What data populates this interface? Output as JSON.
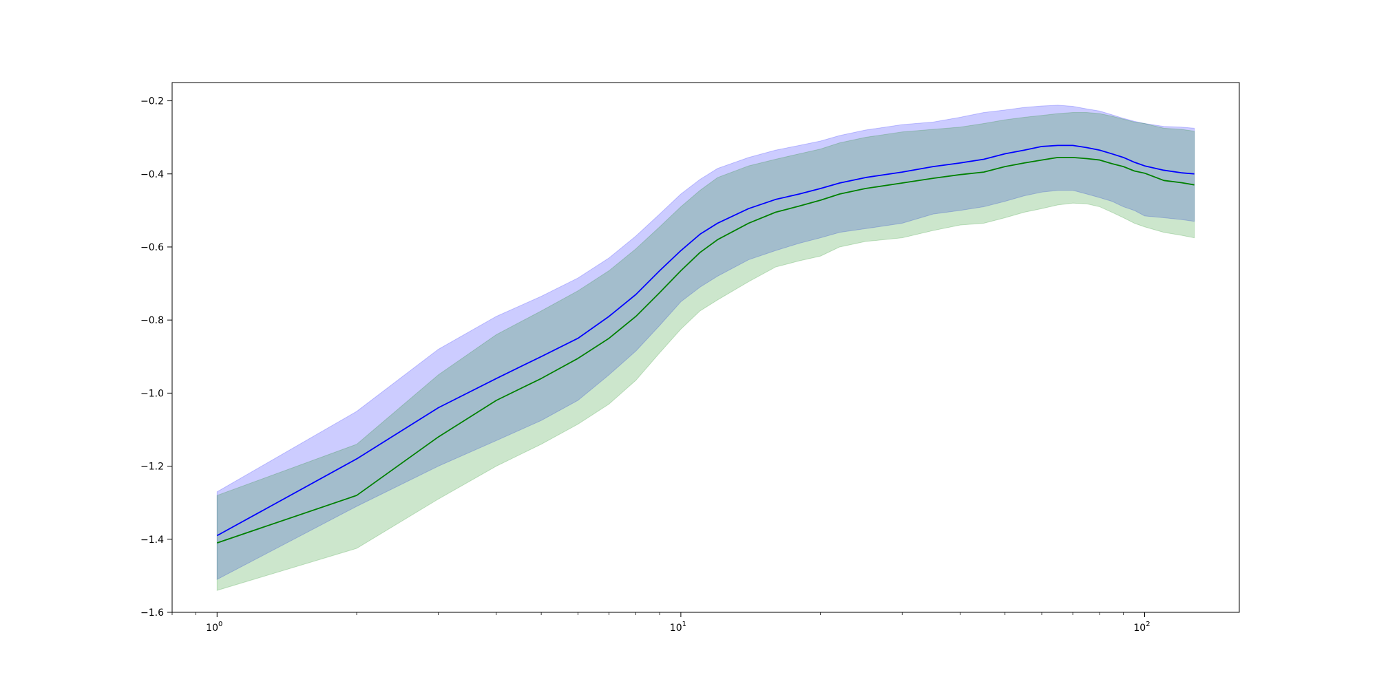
{
  "chart_data": {
    "type": "line",
    "x_scale": "log",
    "xlim": [
      0.8,
      160
    ],
    "ylim": [
      -1.6,
      -0.15
    ],
    "x_ticks": [
      {
        "value": 1,
        "base": "10",
        "exp": "0"
      },
      {
        "value": 10,
        "base": "10",
        "exp": "1"
      },
      {
        "value": 100,
        "base": "10",
        "exp": "2"
      }
    ],
    "y_ticks": [
      {
        "value": -0.2,
        "label": "−0.2"
      },
      {
        "value": -0.4,
        "label": "−0.4"
      },
      {
        "value": -0.6,
        "label": "−0.6"
      },
      {
        "value": -0.8,
        "label": "−0.8"
      },
      {
        "value": -1.0,
        "label": "−1.0"
      },
      {
        "value": -1.2,
        "label": "−1.2"
      },
      {
        "value": -1.4,
        "label": "−1.4"
      },
      {
        "value": -1.6,
        "label": "−1.6"
      }
    ],
    "grid": false,
    "series": [
      {
        "color": "#0000ff",
        "band_color": "#0000ff",
        "band_opacity": 0.2,
        "x": [
          1,
          2,
          3,
          4,
          5,
          6,
          7,
          8,
          9,
          10,
          11,
          12,
          14,
          16,
          18,
          20,
          22,
          25,
          30,
          35,
          40,
          45,
          50,
          55,
          60,
          65,
          70,
          75,
          80,
          85,
          90,
          95,
          100,
          110,
          120,
          128
        ],
        "y": [
          -1.39,
          -1.18,
          -1.04,
          -0.96,
          -0.9,
          -0.85,
          -0.79,
          -0.73,
          -0.665,
          -0.61,
          -0.565,
          -0.535,
          -0.495,
          -0.47,
          -0.455,
          -0.44,
          -0.425,
          -0.41,
          -0.395,
          -0.38,
          -0.37,
          -0.36,
          -0.345,
          -0.335,
          -0.325,
          -0.322,
          -0.322,
          -0.328,
          -0.335,
          -0.345,
          -0.355,
          -0.368,
          -0.378,
          -0.39,
          -0.397,
          -0.4
        ],
        "upper": [
          -1.27,
          -1.05,
          -0.88,
          -0.79,
          -0.735,
          -0.685,
          -0.63,
          -0.57,
          -0.51,
          -0.455,
          -0.415,
          -0.385,
          -0.355,
          -0.335,
          -0.322,
          -0.31,
          -0.295,
          -0.28,
          -0.265,
          -0.258,
          -0.245,
          -0.232,
          -0.225,
          -0.218,
          -0.214,
          -0.212,
          -0.215,
          -0.222,
          -0.228,
          -0.238,
          -0.248,
          -0.256,
          -0.262,
          -0.27,
          -0.272,
          -0.275
        ],
        "lower": [
          -1.51,
          -1.31,
          -1.2,
          -1.13,
          -1.075,
          -1.02,
          -0.95,
          -0.885,
          -0.815,
          -0.75,
          -0.71,
          -0.68,
          -0.635,
          -0.61,
          -0.59,
          -0.575,
          -0.56,
          -0.55,
          -0.535,
          -0.51,
          -0.5,
          -0.49,
          -0.475,
          -0.46,
          -0.45,
          -0.445,
          -0.445,
          -0.455,
          -0.465,
          -0.475,
          -0.49,
          -0.5,
          -0.515,
          -0.52,
          -0.525,
          -0.53
        ]
      },
      {
        "color": "#008000",
        "band_color": "#008000",
        "band_opacity": 0.2,
        "x": [
          1,
          2,
          3,
          4,
          5,
          6,
          7,
          8,
          9,
          10,
          11,
          12,
          14,
          16,
          18,
          20,
          22,
          25,
          30,
          35,
          40,
          45,
          50,
          55,
          60,
          65,
          70,
          75,
          80,
          85,
          90,
          95,
          100,
          110,
          120,
          128
        ],
        "y": [
          -1.41,
          -1.28,
          -1.12,
          -1.02,
          -0.96,
          -0.905,
          -0.85,
          -0.79,
          -0.725,
          -0.665,
          -0.615,
          -0.58,
          -0.535,
          -0.505,
          -0.488,
          -0.472,
          -0.455,
          -0.44,
          -0.425,
          -0.412,
          -0.402,
          -0.395,
          -0.38,
          -0.37,
          -0.362,
          -0.355,
          -0.355,
          -0.358,
          -0.362,
          -0.372,
          -0.38,
          -0.392,
          -0.398,
          -0.418,
          -0.424,
          -0.43
        ],
        "upper": [
          -1.28,
          -1.14,
          -0.95,
          -0.84,
          -0.775,
          -0.72,
          -0.665,
          -0.605,
          -0.545,
          -0.49,
          -0.445,
          -0.41,
          -0.378,
          -0.36,
          -0.345,
          -0.332,
          -0.315,
          -0.3,
          -0.285,
          -0.278,
          -0.272,
          -0.262,
          -0.252,
          -0.245,
          -0.24,
          -0.235,
          -0.232,
          -0.232,
          -0.235,
          -0.242,
          -0.25,
          -0.258,
          -0.262,
          -0.275,
          -0.278,
          -0.283
        ],
        "lower": [
          -1.54,
          -1.425,
          -1.29,
          -1.2,
          -1.14,
          -1.085,
          -1.03,
          -0.965,
          -0.89,
          -0.825,
          -0.775,
          -0.745,
          -0.695,
          -0.655,
          -0.638,
          -0.625,
          -0.6,
          -0.585,
          -0.575,
          -0.555,
          -0.54,
          -0.535,
          -0.52,
          -0.505,
          -0.495,
          -0.485,
          -0.48,
          -0.482,
          -0.49,
          -0.505,
          -0.52,
          -0.535,
          -0.545,
          -0.56,
          -0.568,
          -0.575
        ]
      }
    ]
  }
}
